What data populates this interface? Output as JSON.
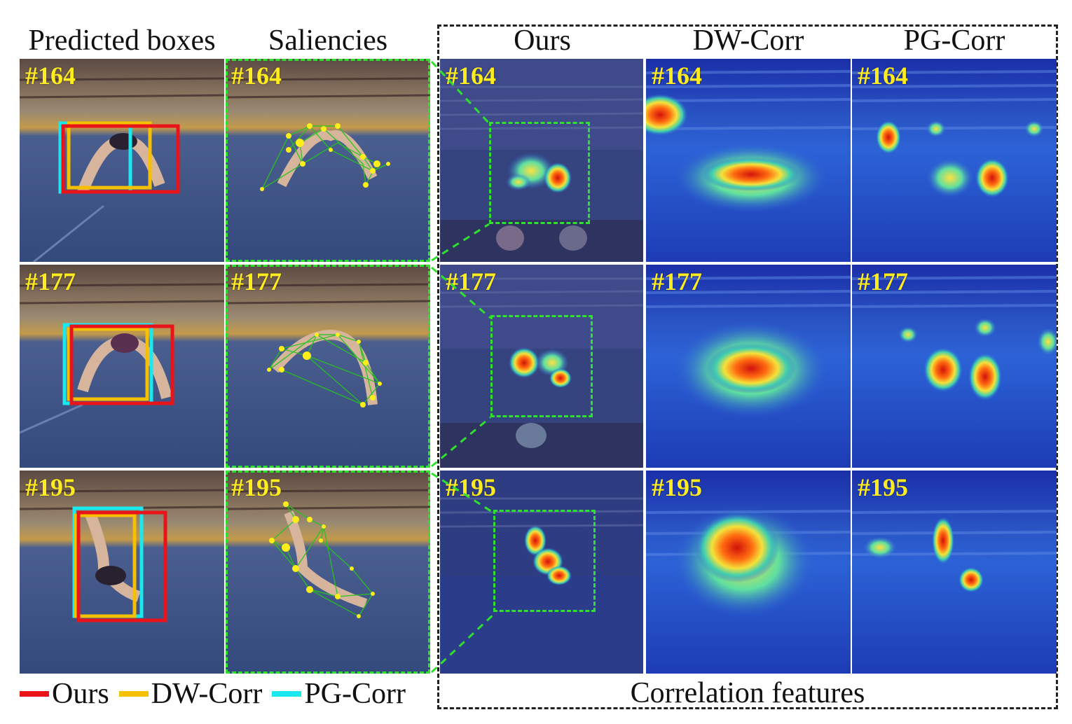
{
  "headers": {
    "col1": "Predicted boxes",
    "col2": "Saliencies",
    "col3": "Ours",
    "col4": "DW-Corr",
    "col5": "PG-Corr"
  },
  "frames": [
    "#164",
    "#177",
    "#195"
  ],
  "legend": [
    {
      "label": "Ours",
      "color": "#e8141a"
    },
    {
      "label": "DW-Corr",
      "color": "#f5c000"
    },
    {
      "label": "PG-Corr",
      "color": "#19e8ef"
    }
  ],
  "footer": "Correlation features",
  "colors": {
    "dash_green": "#2fe02f",
    "frame_number": "#ffec1f",
    "arena_floor": "#3e5487",
    "heatmap_low": "#1d3ccf",
    "heatmap_high": "#d8160c"
  }
}
